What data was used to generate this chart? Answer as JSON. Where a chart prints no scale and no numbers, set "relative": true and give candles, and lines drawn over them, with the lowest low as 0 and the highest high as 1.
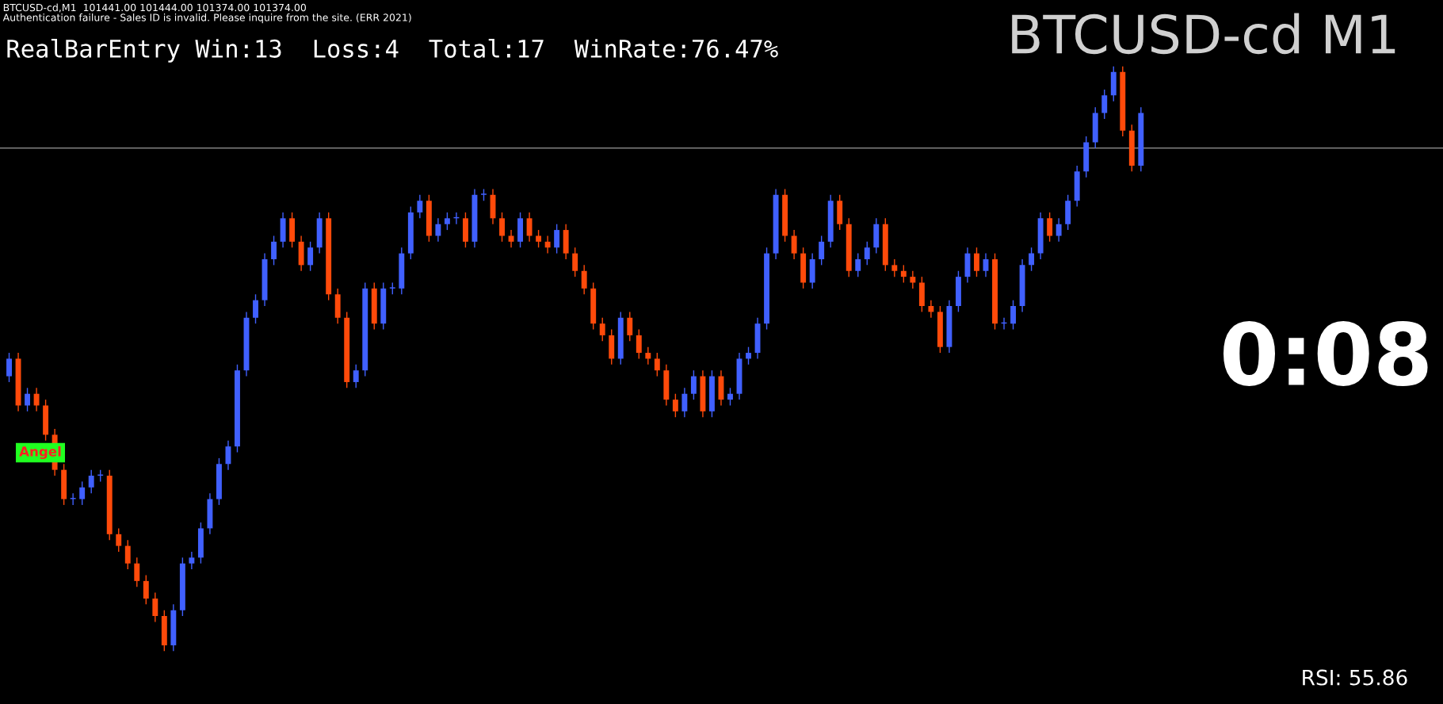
{
  "chart_data": {
    "type": "candlestick",
    "relative": true,
    "title": "BTCUSD-cd M1",
    "subtitle": "RealBarEntry Win:13  Loss:4  Total:17  WinRate:76.47%",
    "annotations": [
      "BTCUSD-cd,M1  101441.00 101444.00 101374.00 101374.00",
      "Authentication failure - Sales ID is invalid. Please inquire from the site. (ERR 2021)",
      "Angel",
      "0:08",
      "RSI: 55.86"
    ],
    "categories": [
      null,
      null,
      null,
      null,
      null,
      null,
      null,
      null,
      null,
      null,
      null,
      null,
      null,
      null,
      null,
      null,
      null,
      null,
      null,
      null,
      null,
      null,
      null,
      null,
      null,
      null,
      null,
      null,
      null,
      null,
      null,
      null,
      null,
      null,
      null,
      null,
      null,
      null,
      null,
      null,
      null,
      null,
      null,
      null,
      null,
      null,
      null,
      null,
      null,
      null,
      null,
      null,
      null,
      null,
      null,
      null,
      null,
      null,
      null,
      null,
      null,
      null,
      null,
      null,
      null,
      null,
      null,
      null,
      null,
      null,
      null,
      null,
      null,
      null,
      null,
      null,
      null,
      null,
      null,
      null,
      null,
      null,
      null,
      null,
      null,
      null,
      null,
      null,
      null,
      null,
      null,
      null,
      null,
      null,
      null,
      null,
      null,
      null,
      null,
      null,
      null,
      null,
      null,
      null,
      null,
      null,
      null,
      null,
      null,
      null,
      null,
      null,
      null,
      null,
      null,
      null,
      null,
      null,
      null,
      null,
      null,
      null,
      null,
      null,
      null
    ],
    "ohlc": [
      [
        0.47,
        0.51,
        0.46,
        0.5
      ],
      [
        0.5,
        0.51,
        0.41,
        0.42
      ],
      [
        0.42,
        0.45,
        0.41,
        0.44
      ],
      [
        0.44,
        0.45,
        0.41,
        0.42
      ],
      [
        0.42,
        0.43,
        0.36,
        0.37
      ],
      [
        0.37,
        0.38,
        0.3,
        0.31
      ],
      [
        0.31,
        0.32,
        0.25,
        0.26
      ],
      [
        0.26,
        0.27,
        0.25,
        0.26
      ],
      [
        0.26,
        0.29,
        0.25,
        0.28
      ],
      [
        0.28,
        0.31,
        0.27,
        0.3
      ],
      [
        0.3,
        0.31,
        0.29,
        0.3
      ],
      [
        0.3,
        0.31,
        0.19,
        0.2
      ],
      [
        0.2,
        0.21,
        0.17,
        0.18
      ],
      [
        0.18,
        0.19,
        0.14,
        0.15
      ],
      [
        0.15,
        0.16,
        0.11,
        0.12
      ],
      [
        0.12,
        0.13,
        0.08,
        0.09
      ],
      [
        0.09,
        0.1,
        0.05,
        0.06
      ],
      [
        0.06,
        0.07,
        0,
        0.01
      ],
      [
        0.01,
        0.08,
        0,
        0.07
      ],
      [
        0.07,
        0.16,
        0.06,
        0.15
      ],
      [
        0.15,
        0.17,
        0.14,
        0.16
      ],
      [
        0.16,
        0.22,
        0.15,
        0.21
      ],
      [
        0.21,
        0.27,
        0.2,
        0.26
      ],
      [
        0.26,
        0.33,
        0.25,
        0.32
      ],
      [
        0.32,
        0.36,
        0.31,
        0.35
      ],
      [
        0.35,
        0.49,
        0.34,
        0.48
      ],
      [
        0.48,
        0.58,
        0.47,
        0.57
      ],
      [
        0.57,
        0.61,
        0.56,
        0.6
      ],
      [
        0.6,
        0.68,
        0.59,
        0.67
      ],
      [
        0.67,
        0.71,
        0.66,
        0.7
      ],
      [
        0.7,
        0.75,
        0.69,
        0.74
      ],
      [
        0.74,
        0.75,
        0.69,
        0.7
      ],
      [
        0.7,
        0.71,
        0.65,
        0.66
      ],
      [
        0.66,
        0.7,
        0.65,
        0.69
      ],
      [
        0.69,
        0.75,
        0.68,
        0.74
      ],
      [
        0.74,
        0.75,
        0.6,
        0.61
      ],
      [
        0.61,
        0.62,
        0.56,
        0.57
      ],
      [
        0.57,
        0.58,
        0.45,
        0.46
      ],
      [
        0.46,
        0.49,
        0.45,
        0.48
      ],
      [
        0.48,
        0.63,
        0.47,
        0.62
      ],
      [
        0.62,
        0.63,
        0.55,
        0.56
      ],
      [
        0.56,
        0.63,
        0.55,
        0.62
      ],
      [
        0.62,
        0.63,
        0.61,
        0.62
      ],
      [
        0.62,
        0.69,
        0.61,
        0.68
      ],
      [
        0.68,
        0.76,
        0.67,
        0.75
      ],
      [
        0.75,
        0.78,
        0.74,
        0.77
      ],
      [
        0.77,
        0.78,
        0.7,
        0.71
      ],
      [
        0.71,
        0.74,
        0.7,
        0.73
      ],
      [
        0.73,
        0.75,
        0.72,
        0.74
      ],
      [
        0.74,
        0.75,
        0.73,
        0.74
      ],
      [
        0.74,
        0.75,
        0.69,
        0.7
      ],
      [
        0.7,
        0.79,
        0.69,
        0.78
      ],
      [
        0.78,
        0.79,
        0.77,
        0.78
      ],
      [
        0.78,
        0.79,
        0.73,
        0.74
      ],
      [
        0.74,
        0.75,
        0.7,
        0.71
      ],
      [
        0.71,
        0.72,
        0.69,
        0.7
      ],
      [
        0.7,
        0.75,
        0.69,
        0.74
      ],
      [
        0.74,
        0.75,
        0.7,
        0.71
      ],
      [
        0.71,
        0.72,
        0.69,
        0.7
      ],
      [
        0.7,
        0.71,
        0.68,
        0.69
      ],
      [
        0.69,
        0.73,
        0.68,
        0.72
      ],
      [
        0.72,
        0.73,
        0.67,
        0.68
      ],
      [
        0.68,
        0.69,
        0.64,
        0.65
      ],
      [
        0.65,
        0.66,
        0.61,
        0.62
      ],
      [
        0.62,
        0.63,
        0.55,
        0.56
      ],
      [
        0.56,
        0.57,
        0.53,
        0.54
      ],
      [
        0.54,
        0.55,
        0.49,
        0.5
      ],
      [
        0.5,
        0.58,
        0.49,
        0.57
      ],
      [
        0.57,
        0.58,
        0.53,
        0.54
      ],
      [
        0.54,
        0.55,
        0.5,
        0.51
      ],
      [
        0.51,
        0.52,
        0.49,
        0.5
      ],
      [
        0.5,
        0.51,
        0.47,
        0.48
      ],
      [
        0.48,
        0.49,
        0.42,
        0.43
      ],
      [
        0.43,
        0.44,
        0.4,
        0.41
      ],
      [
        0.41,
        0.45,
        0.4,
        0.44
      ],
      [
        0.44,
        0.48,
        0.43,
        0.47
      ],
      [
        0.47,
        0.48,
        0.4,
        0.41
      ],
      [
        0.41,
        0.48,
        0.4,
        0.47
      ],
      [
        0.47,
        0.48,
        0.42,
        0.43
      ],
      [
        0.43,
        0.45,
        0.42,
        0.44
      ],
      [
        0.44,
        0.51,
        0.43,
        0.5
      ],
      [
        0.5,
        0.52,
        0.49,
        0.51
      ],
      [
        0.51,
        0.57,
        0.5,
        0.56
      ],
      [
        0.56,
        0.69,
        0.55,
        0.68
      ],
      [
        0.68,
        0.79,
        0.67,
        0.78
      ],
      [
        0.78,
        0.79,
        0.7,
        0.71
      ],
      [
        0.71,
        0.72,
        0.67,
        0.68
      ],
      [
        0.68,
        0.69,
        0.62,
        0.63
      ],
      [
        0.63,
        0.68,
        0.62,
        0.67
      ],
      [
        0.67,
        0.71,
        0.66,
        0.7
      ],
      [
        0.7,
        0.78,
        0.69,
        0.77
      ],
      [
        0.77,
        0.78,
        0.72,
        0.73
      ],
      [
        0.73,
        0.74,
        0.64,
        0.65
      ],
      [
        0.65,
        0.68,
        0.64,
        0.67
      ],
      [
        0.67,
        0.7,
        0.66,
        0.69
      ],
      [
        0.69,
        0.74,
        0.68,
        0.73
      ],
      [
        0.73,
        0.74,
        0.65,
        0.66
      ],
      [
        0.66,
        0.67,
        0.64,
        0.65
      ],
      [
        0.65,
        0.66,
        0.63,
        0.64
      ],
      [
        0.64,
        0.65,
        0.62,
        0.63
      ],
      [
        0.63,
        0.64,
        0.58,
        0.59
      ],
      [
        0.59,
        0.6,
        0.57,
        0.58
      ],
      [
        0.58,
        0.59,
        0.51,
        0.52
      ],
      [
        0.52,
        0.6,
        0.51,
        0.59
      ],
      [
        0.59,
        0.65,
        0.58,
        0.64
      ],
      [
        0.64,
        0.69,
        0.63,
        0.68
      ],
      [
        0.68,
        0.69,
        0.64,
        0.65
      ],
      [
        0.65,
        0.68,
        0.64,
        0.67
      ],
      [
        0.67,
        0.68,
        0.55,
        0.56
      ],
      [
        0.56,
        0.57,
        0.55,
        0.56
      ],
      [
        0.56,
        0.6,
        0.55,
        0.59
      ],
      [
        0.59,
        0.67,
        0.58,
        0.66
      ],
      [
        0.66,
        0.69,
        0.65,
        0.68
      ],
      [
        0.68,
        0.75,
        0.67,
        0.74
      ],
      [
        0.74,
        0.75,
        0.7,
        0.71
      ],
      [
        0.71,
        0.74,
        0.7,
        0.73
      ],
      [
        0.73,
        0.78,
        0.72,
        0.77
      ],
      [
        0.77,
        0.83,
        0.76,
        0.82
      ],
      [
        0.82,
        0.88,
        0.81,
        0.87
      ],
      [
        0.87,
        0.93,
        0.86,
        0.92
      ],
      [
        0.92,
        0.96,
        0.91,
        0.95
      ],
      [
        0.95,
        1,
        0.94,
        0.99
      ],
      [
        0.99,
        1,
        0.88,
        0.89
      ],
      [
        0.89,
        0.9,
        0.82,
        0.83
      ],
      [
        0.83,
        0.93,
        0.82,
        0.92
      ]
    ],
    "ref_lines": [
      {
        "axis": "y",
        "value": 0.86,
        "color": "#808080"
      }
    ]
  }
}
